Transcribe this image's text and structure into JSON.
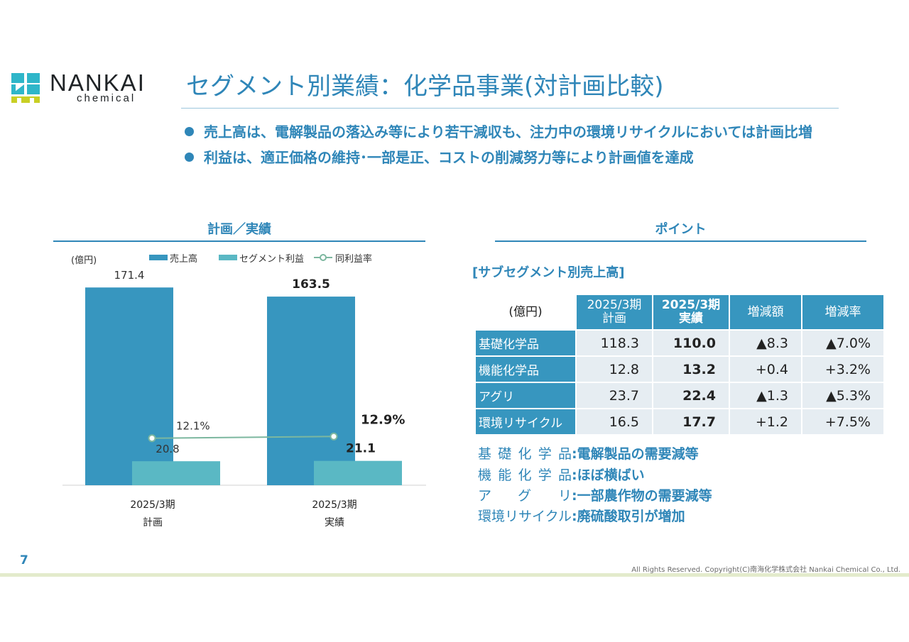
{
  "brand": {
    "name": "NANKAI",
    "sub": "chemical",
    "colors": {
      "teal": "#2fb6c9",
      "yellow": "#c9cf25",
      "blue": "#2f86b8"
    }
  },
  "title": "セグメント別業績：化学品事業(対計画比較)",
  "bullets": [
    "売上高は、電解製品の落込み等により若干減収も、注力中の環境リサイクルにおいては計画比増",
    "利益は、適正価格の維持･一部是正、コストの削減努力等により計画値を達成"
  ],
  "left_section": {
    "heading": "計画／実績"
  },
  "right_section": {
    "heading": "ポイント"
  },
  "chart_data": {
    "type": "bar",
    "unit_label": "(億円)",
    "legend": [
      "売上高",
      "セグメント利益",
      "同利益率"
    ],
    "categories": [
      [
        "2025/3期",
        "計画"
      ],
      [
        "2025/3期",
        "実績"
      ]
    ],
    "series": [
      {
        "name": "売上高",
        "values": [
          171.4,
          163.5
        ],
        "labels": [
          "171.4",
          "163.5"
        ],
        "color": "#3796bf"
      },
      {
        "name": "セグメント利益",
        "values": [
          20.8,
          21.1
        ],
        "labels": [
          "20.8",
          "21.1"
        ],
        "color": "#5ab8c4"
      },
      {
        "name": "同利益率",
        "type": "line",
        "values": [
          12.1,
          12.9
        ],
        "labels": [
          "12.1%",
          "12.9%"
        ],
        "color": "#7cb79f"
      }
    ],
    "ylim": [
      0,
      190
    ],
    "legend_position": "top"
  },
  "table": {
    "title": "[サブセグメント別売上高]",
    "unit": "(億円)",
    "headers": [
      [
        "2025/3期",
        "計画"
      ],
      [
        "2025/3期",
        "実績"
      ],
      [
        "増減額"
      ],
      [
        "増減率"
      ]
    ],
    "rows": [
      {
        "name": "基礎化学品",
        "plan": "118.3",
        "actual": "110.0",
        "diff": "▲8.3",
        "rate": "▲7.0%"
      },
      {
        "name": "機能化学品",
        "plan": "12.8",
        "actual": "13.2",
        "diff": "+0.4",
        "rate": "+3.2%"
      },
      {
        "name": "アグリ",
        "plan": "23.7",
        "actual": "22.4",
        "diff": "▲1.3",
        "rate": "▲5.3%"
      },
      {
        "name": "環境リサイクル",
        "plan": "16.5",
        "actual": "17.7",
        "diff": "+1.2",
        "rate": "+7.5%"
      }
    ]
  },
  "notes": [
    {
      "label": "基礎化学品",
      "sep": ":",
      "text": "電解製品の需要減等"
    },
    {
      "label": "機能化学品",
      "sep": ":",
      "text": "ほぼ横ばい"
    },
    {
      "label": "アグリ",
      "sep": ":",
      "text": "一部農作物の需要減等"
    },
    {
      "label": "環境リサイクル",
      "sep": ":",
      "text": "廃硫酸取引が増加"
    }
  ],
  "page_number": "7",
  "copyright": "All Rights Reserved. Copyright(C)南海化学株式会社 Nankai Chemical Co., Ltd."
}
